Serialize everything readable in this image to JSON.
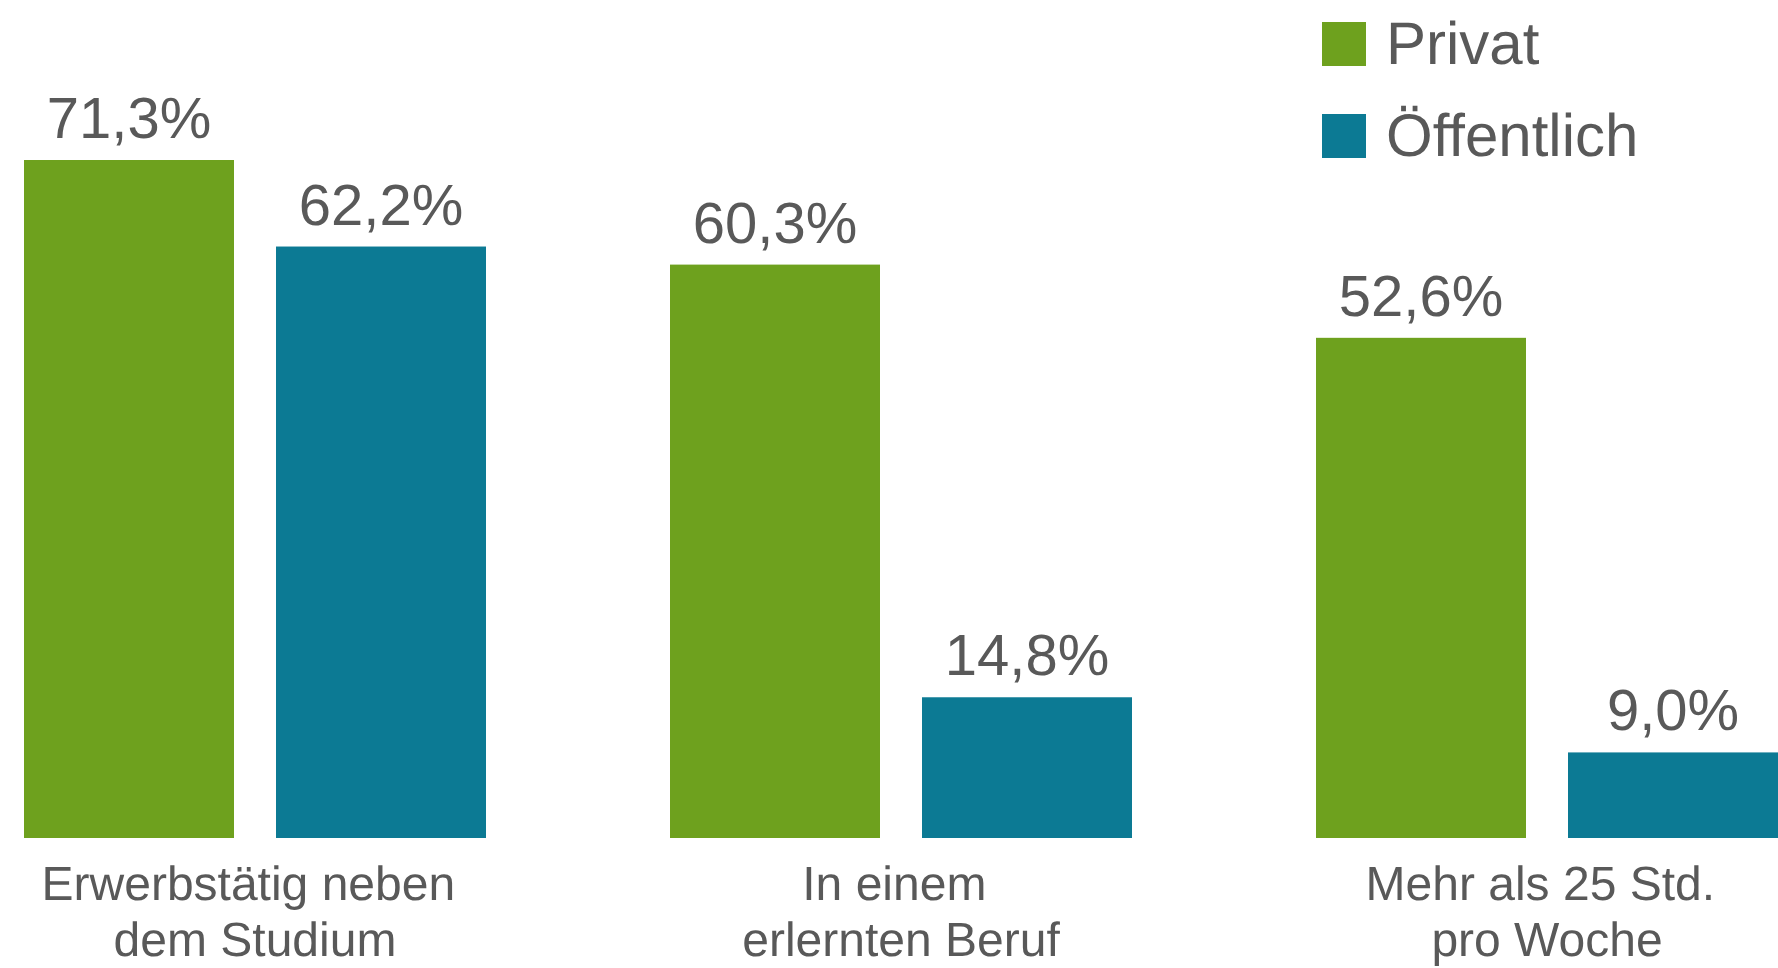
{
  "chart_data": {
    "type": "bar",
    "categories": [
      "Erwerbstätig neben\ndem Studium",
      "In einem\nerlernten Beruf",
      "Mehr als 25 Std.\npro Woche"
    ],
    "series": [
      {
        "name": "Privat",
        "color": "#6ea11e",
        "values": [
          71.3,
          60.3,
          52.6
        ],
        "value_labels": [
          "71,3%",
          "60,3%",
          "52,6%"
        ]
      },
      {
        "name": "Öffentlich",
        "color": "#0c7a94",
        "values": [
          62.2,
          14.8,
          9.0
        ],
        "value_labels": [
          "62,2%",
          "14,8%",
          "9,0%"
        ]
      }
    ],
    "legend": "top right"
  }
}
